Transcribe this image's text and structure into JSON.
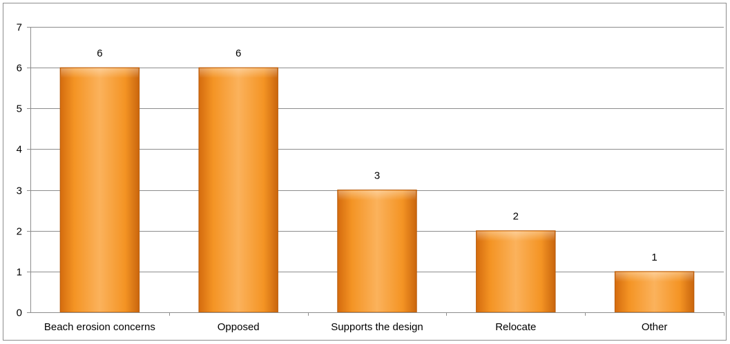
{
  "chart_data": {
    "type": "bar",
    "categories": [
      "Beach erosion concerns",
      "Opposed",
      "Supports the design",
      "Relocate",
      "Other"
    ],
    "values": [
      6,
      6,
      3,
      2,
      1
    ],
    "data_labels": [
      "6",
      "6",
      "3",
      "2",
      "1"
    ],
    "title": "",
    "xlabel": "",
    "ylabel": "",
    "ylim": [
      0,
      7
    ],
    "yticks": [
      0,
      1,
      2,
      3,
      4,
      5,
      6,
      7
    ],
    "ytick_labels": [
      "0",
      "1",
      "2",
      "3",
      "4",
      "5",
      "6",
      "7"
    ],
    "grid": true,
    "legend": "none",
    "colors": {
      "bar_light": "#fbb25c",
      "bar_mid": "#f7941e",
      "bar_dark": "#d46b0e",
      "bar_edge": "#b85c0c",
      "grid": "#8c8c8c",
      "axis": "#8c8c8c"
    }
  }
}
